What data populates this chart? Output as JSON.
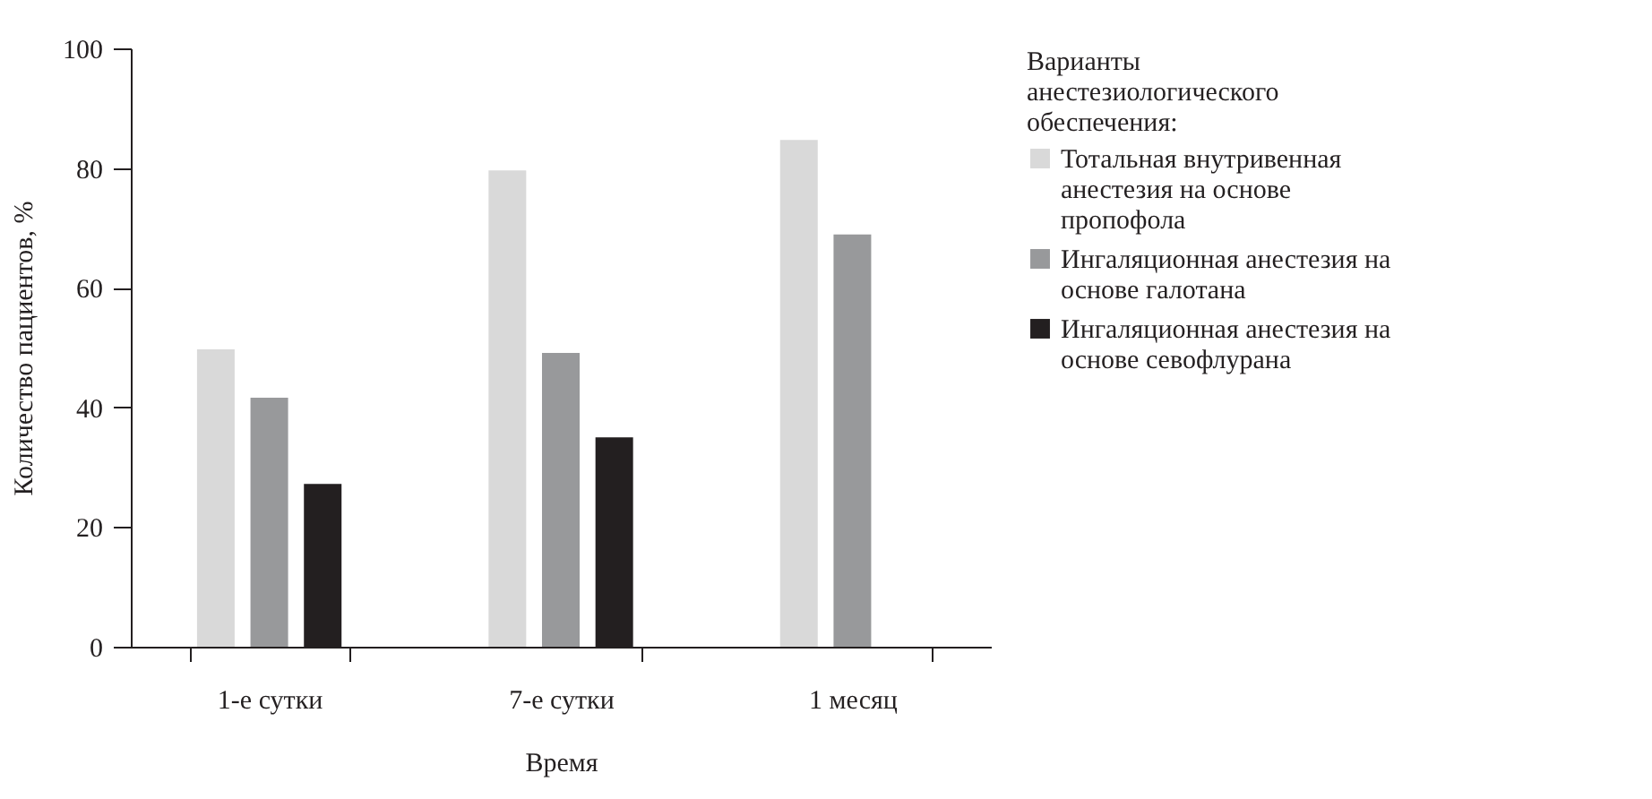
{
  "chart_data": {
    "type": "bar",
    "xlabel": "Время",
    "ylabel": "Количество пациентов, %",
    "legend_title": "Варианты анестезиологического обеспечения:",
    "categories": [
      "1-е сутки",
      "7-е сутки",
      "1 месяц"
    ],
    "series": [
      {
        "name": "Тотальная внутривенная анестезия на основе пропофола",
        "color": "#d9d9d9",
        "values": [
          49.7,
          79.6,
          84.7
        ]
      },
      {
        "name": "Ингаляционная анестезия на основе галотана",
        "color": "#98999b",
        "values": [
          41.6,
          49.1,
          68.9
        ]
      },
      {
        "name": "Ингаляционная анестезия на основе севофлурана",
        "color": "#231f20",
        "values": [
          27.2,
          35.0,
          null
        ]
      }
    ],
    "ylim": [
      0,
      100
    ],
    "yticks": [
      0,
      20,
      40,
      60,
      80,
      100
    ],
    "grid": false,
    "legend": "right"
  }
}
